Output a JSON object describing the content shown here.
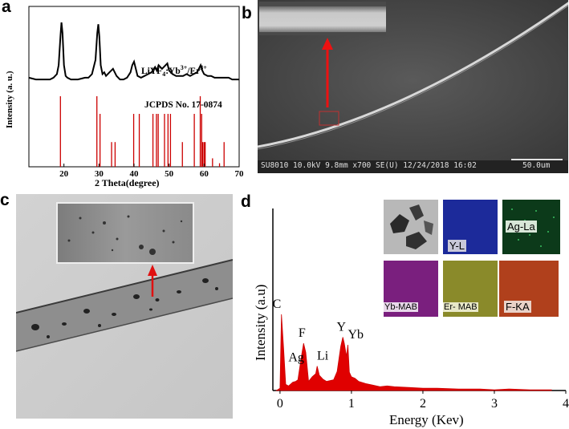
{
  "figure": {
    "panel_labels": [
      "a",
      "b",
      "c",
      "d"
    ]
  },
  "panel_a": {
    "ylabel": "Intensity (a. u.)",
    "xlabel": "2 Theta(degree)",
    "sample_label": "LiYF4:Yb3+/Er3+",
    "sample_label_parts": {
      "main": "LiYF",
      "sub": "4",
      "mid": ":Yb",
      "sup1": "3+",
      "sep": "/Er",
      "sup2": "3+"
    },
    "reference_label": "JCPDS No. 17-0874",
    "x_ticks": [
      "20",
      "30",
      "40",
      "50",
      "60",
      "70"
    ]
  },
  "panel_b": {
    "sem_info": "SU8010 10.0kV 9.8mm x700 SE(U) 12/24/2018 16:02",
    "scale_bar": "50.0um"
  },
  "panel_c": {},
  "panel_d": {
    "ylabel": "Intensity (a.u)",
    "xlabel": "Energy (Kev)",
    "x_ticks": [
      "0",
      "1",
      "2",
      "3",
      "4"
    ],
    "peak_labels": [
      "C",
      "Ag",
      "F",
      "Li",
      "Y",
      "Yb"
    ],
    "map_labels": [
      "Y-L",
      "Ag-La",
      "Yb-MAB",
      "Er- MAB",
      "F-KA"
    ]
  },
  "colors": {
    "xrd_reference": "#cc0000",
    "eds_fill": "#e00000",
    "map_y": "#1c2a9a",
    "map_ag": "#0c3a1a",
    "map_yb": "#7a1f7e",
    "map_er": "#8a8a2a",
    "map_f": "#b0401c"
  },
  "chart_data": [
    {
      "type": "line",
      "panel": "a",
      "title": "",
      "xlabel": "2 Theta(degree)",
      "ylabel": "Intensity (a. u.)",
      "xlim": [
        10,
        70
      ],
      "series": [
        {
          "name": "LiYF4:Yb3+/Er3+",
          "x": [
            10,
            12,
            14,
            16,
            17,
            18,
            18.5,
            19,
            19.3,
            19.6,
            20,
            20.5,
            21,
            22,
            24,
            26,
            27,
            28,
            29,
            29.5,
            29.8,
            30.1,
            30.5,
            31,
            31.5,
            32,
            33,
            34,
            35,
            36,
            37,
            38,
            39,
            39.5,
            40,
            40.5,
            41,
            42,
            43,
            44,
            45,
            46,
            46.5,
            47,
            48,
            49,
            49.5,
            50,
            51,
            52,
            53,
            54,
            55,
            56,
            57,
            58,
            58.5,
            59,
            59.5,
            60,
            61,
            62,
            63,
            64,
            65,
            66,
            67,
            68,
            69,
            70
          ],
          "y": [
            5,
            4,
            4,
            4,
            5,
            7,
            12,
            28,
            36,
            30,
            12,
            6,
            5,
            4,
            4,
            5,
            5,
            7,
            15,
            30,
            35,
            28,
            12,
            7,
            8,
            6,
            8,
            10,
            6,
            4,
            4,
            5,
            8,
            12,
            14,
            10,
            6,
            5,
            6,
            7,
            8,
            11,
            9,
            12,
            10,
            12,
            13,
            9,
            7,
            6,
            6,
            6,
            7,
            6,
            7,
            8,
            10,
            12,
            9,
            7,
            6,
            6,
            5,
            5,
            5,
            5,
            5,
            4,
            4,
            4
          ]
        },
        {
          "name": "JCPDS No. 17-0874",
          "x": [
            19.0,
            29.4,
            30.3,
            33.6,
            34.6,
            39.9,
            41.5,
            45.4,
            46.4,
            46.9,
            48.7,
            49.7,
            50.4,
            53.8,
            57.2,
            58.9,
            59.3,
            59.6,
            60.0,
            60.3,
            62.4,
            64.4,
            65.7
          ],
          "y": [
            100,
            100,
            75,
            35,
            35,
            75,
            75,
            75,
            75,
            75,
            75,
            75,
            75,
            35,
            75,
            100,
            75,
            35,
            35,
            35,
            12,
            5,
            35
          ]
        }
      ]
    },
    {
      "type": "area",
      "panel": "d",
      "title": "",
      "xlabel": "Energy (Kev)",
      "ylabel": "Intensity (a.u)",
      "xlim": [
        -0.1,
        4
      ],
      "series": [
        {
          "name": "",
          "x": [
            -0.05,
            0.0,
            0.02,
            0.05,
            0.08,
            0.12,
            0.18,
            0.22,
            0.25,
            0.3,
            0.33,
            0.36,
            0.4,
            0.45,
            0.5,
            0.52,
            0.55,
            0.6,
            0.65,
            0.7,
            0.75,
            0.8,
            0.85,
            0.88,
            0.9,
            0.93,
            0.95,
            0.97,
            1.0,
            1.05,
            1.1,
            1.2,
            1.3,
            1.4,
            1.5,
            1.6,
            1.8,
            2.0,
            2.2,
            2.5,
            2.8,
            3.0,
            3.2,
            3.5,
            3.8
          ],
          "y": [
            0,
            3,
            100,
            55,
            8,
            6,
            11,
            12,
            14,
            45,
            62,
            50,
            12,
            18,
            22,
            32,
            20,
            15,
            12,
            13,
            14,
            25,
            58,
            70,
            62,
            45,
            60,
            24,
            18,
            16,
            12,
            9,
            7,
            5,
            6,
            5,
            4,
            3,
            3,
            2,
            2,
            1,
            2,
            1,
            1
          ]
        }
      ]
    }
  ]
}
